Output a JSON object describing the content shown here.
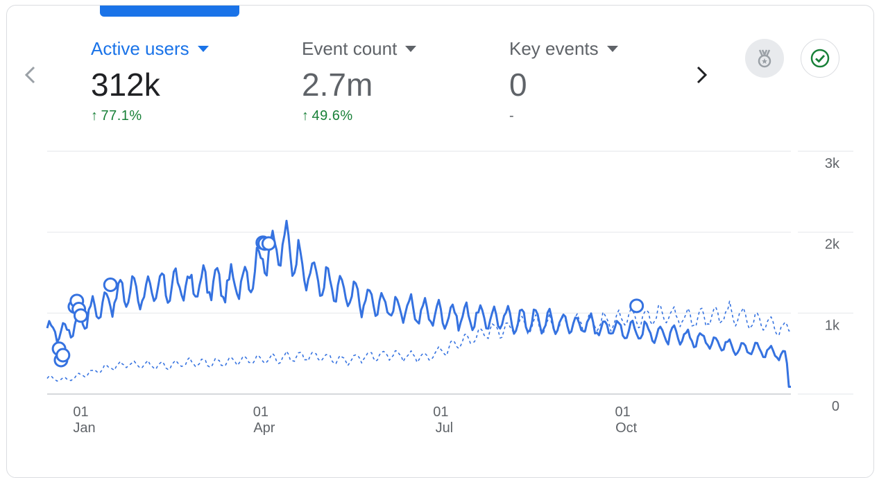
{
  "metrics": [
    {
      "label": "Active users",
      "value": "312k",
      "change": "77.1%",
      "selected": true
    },
    {
      "label": "Event count",
      "value": "2.7m",
      "change": "49.6%",
      "selected": false
    },
    {
      "label": "Key events",
      "value": "0",
      "change": "-",
      "selected": false
    }
  ],
  "icons": {
    "prev": "chevron-left-icon",
    "next": "chevron-right-icon",
    "insights": "medal-icon",
    "check": "check-circle-icon"
  },
  "colors": {
    "accent": "#1a73e8",
    "line": "#3572e0",
    "positive": "#188038",
    "muted": "#5f6368"
  },
  "chart_data": {
    "type": "line",
    "x_ticks": [
      {
        "day": "01",
        "month": "Jan"
      },
      {
        "day": "01",
        "month": "Apr"
      },
      {
        "day": "01",
        "month": "Jul"
      },
      {
        "day": "01",
        "month": "Oct"
      }
    ],
    "y_ticks": [
      "3k",
      "2k",
      "1k",
      "0"
    ],
    "ylim": [
      0,
      3000
    ],
    "x_range": [
      "2023-12-15",
      "2024-12-25"
    ],
    "grid": true,
    "series": [
      {
        "style": "solid",
        "points": [
          [
            "2023-12-15",
            780
          ],
          [
            "2023-12-25",
            780
          ],
          [
            "2024-01-05",
            1000
          ],
          [
            "2024-01-15",
            1150
          ],
          [
            "2024-01-25",
            1280
          ],
          [
            "2024-02-05",
            1250
          ],
          [
            "2024-02-15",
            1350
          ],
          [
            "2024-02-25",
            1320
          ],
          [
            "2024-03-05",
            1380
          ],
          [
            "2024-03-15",
            1330
          ],
          [
            "2024-03-25",
            1430
          ],
          [
            "2024-04-05",
            1780
          ],
          [
            "2024-04-15",
            1820
          ],
          [
            "2024-04-25",
            1500
          ],
          [
            "2024-05-05",
            1350
          ],
          [
            "2024-05-15",
            1220
          ],
          [
            "2024-05-25",
            1150
          ],
          [
            "2024-06-05",
            1080
          ],
          [
            "2024-06-15",
            1040
          ],
          [
            "2024-06-25",
            1000
          ],
          [
            "2024-07-05",
            980
          ],
          [
            "2024-07-15",
            960
          ],
          [
            "2024-07-25",
            940
          ],
          [
            "2024-08-05",
            920
          ],
          [
            "2024-08-15",
            910
          ],
          [
            "2024-08-25",
            890
          ],
          [
            "2024-09-05",
            870
          ],
          [
            "2024-09-15",
            850
          ],
          [
            "2024-09-25",
            820
          ],
          [
            "2024-10-05",
            800
          ],
          [
            "2024-10-15",
            760
          ],
          [
            "2024-10-25",
            720
          ],
          [
            "2024-11-05",
            690
          ],
          [
            "2024-11-15",
            650
          ],
          [
            "2024-11-25",
            600
          ],
          [
            "2024-12-05",
            560
          ],
          [
            "2024-12-15",
            520
          ],
          [
            "2024-12-22",
            480
          ],
          [
            "2024-12-25",
            90
          ]
        ]
      },
      {
        "style": "dashed",
        "points": [
          [
            "2023-12-15",
            200
          ],
          [
            "2023-12-25",
            180
          ],
          [
            "2024-01-05",
            260
          ],
          [
            "2024-01-15",
            330
          ],
          [
            "2024-01-25",
            370
          ],
          [
            "2024-02-05",
            360
          ],
          [
            "2024-02-15",
            350
          ],
          [
            "2024-02-25",
            390
          ],
          [
            "2024-03-05",
            380
          ],
          [
            "2024-03-15",
            400
          ],
          [
            "2024-03-25",
            420
          ],
          [
            "2024-04-05",
            430
          ],
          [
            "2024-04-15",
            460
          ],
          [
            "2024-04-25",
            470
          ],
          [
            "2024-05-05",
            440
          ],
          [
            "2024-05-15",
            420
          ],
          [
            "2024-05-25",
            470
          ],
          [
            "2024-06-05",
            480
          ],
          [
            "2024-06-15",
            470
          ],
          [
            "2024-06-25",
            460
          ],
          [
            "2024-07-05",
            560
          ],
          [
            "2024-07-15",
            680
          ],
          [
            "2024-07-25",
            780
          ],
          [
            "2024-08-05",
            820
          ],
          [
            "2024-08-15",
            860
          ],
          [
            "2024-08-25",
            860
          ],
          [
            "2024-09-05",
            880
          ],
          [
            "2024-09-15",
            880
          ],
          [
            "2024-09-25",
            900
          ],
          [
            "2024-10-05",
            950
          ],
          [
            "2024-10-15",
            960
          ],
          [
            "2024-10-25",
            980
          ],
          [
            "2024-11-05",
            920
          ],
          [
            "2024-11-15",
            940
          ],
          [
            "2024-11-25",
            1000
          ],
          [
            "2024-12-05",
            900
          ],
          [
            "2024-12-15",
            850
          ],
          [
            "2024-12-25",
            780
          ]
        ]
      }
    ],
    "annotations": [
      [
        "2023-12-21",
        560
      ],
      [
        "2023-12-22",
        420
      ],
      [
        "2023-12-23",
        480
      ],
      [
        "2023-12-29",
        1080
      ],
      [
        "2023-12-30",
        1150
      ],
      [
        "2023-12-31",
        1050
      ],
      [
        "2024-01-01",
        970
      ],
      [
        "2024-01-16",
        1350
      ],
      [
        "2024-04-02",
        1870
      ],
      [
        "2024-04-03",
        1860
      ],
      [
        "2024-04-05",
        1860
      ],
      [
        "2024-10-08",
        1090
      ]
    ]
  }
}
